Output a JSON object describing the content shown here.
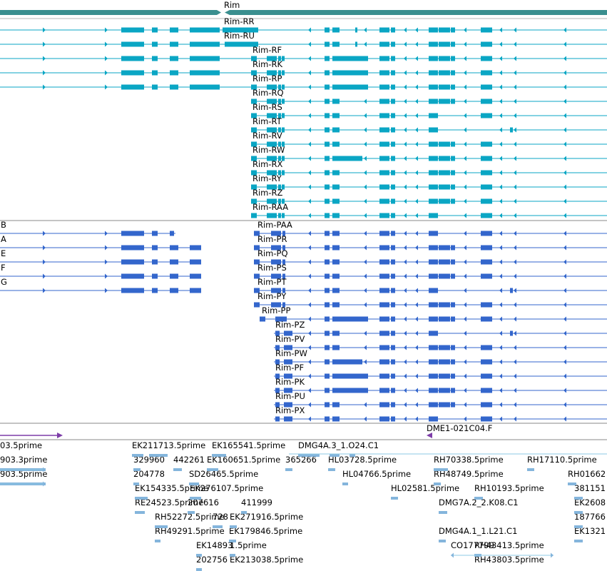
{
  "colors": {
    "gene": "#3a8f8f",
    "tx_a": "#0aa6c4",
    "tx_b": "#3366cc",
    "est": "#84b5dc",
    "est_line": "#8cc8e4",
    "clone": "#7d3ca8",
    "divider": "#8a8a8a"
  },
  "gene_label": "Rim",
  "tracks": {
    "rna_a": {
      "left_labels": [],
      "labels": [
        "Rim-RR",
        "Rim-RU",
        "Rim-RF",
        "Rim-RK",
        "Rim-RP",
        "Rim-RQ",
        "Rim-RS",
        "Rim-RT",
        "Rim-RV",
        "Rim-RW",
        "Rim-RX",
        "Rim-RY",
        "Rim-RZ",
        "Rim-RAA"
      ]
    },
    "rna_b": {
      "left_labels": [
        "B",
        "A",
        "E",
        "F",
        "G"
      ],
      "labels": [
        "Rim-PAA",
        "Rim-PR",
        "Rim-PQ",
        "Rim-PS",
        "Rim-PT",
        "Rim-PY",
        "Rim-PP",
        "Rim-PZ",
        "Rim-PV",
        "Rim-PW",
        "Rim-PF",
        "Rim-PK",
        "Rim-PU",
        "Rim-PX"
      ]
    },
    "clones": {
      "labels": [
        "DME1-021C04.F"
      ]
    },
    "ests": {
      "labels": [
        "03.5prime",
        "903.3prime",
        "903.5prime",
        "EK211713.5prime",
        "EK165541.5prime",
        "DMG4A.3_1.O24.C1",
        "329960",
        "442261",
        "EK160651.5prime",
        "365266",
        "HL03728.5prime",
        "RH70338.5prime",
        "RH17110.5prime",
        "204778",
        "SD26465.5prime",
        "HL04766.5prime",
        "RH48749.5prime",
        "RH01662",
        "EK154335.5prime",
        "EK276107.5prime",
        "HL02581.5prime",
        "RH10193.5prime",
        "381151",
        "RE24523.5prime",
        "207616",
        "411999",
        "DMG7A.2_2.K08.C1",
        "EK2608",
        "RH52272.5prime",
        "728",
        "EK271916.5prime",
        "187766",
        "RH49291.5prime",
        "EK179846.5prime",
        "DMG4A.1_1.L21.C1",
        "EK1321",
        "CO177799",
        "EK14893",
        "1.5prime",
        "RH43413.5prime",
        "202756",
        "EK213038.5prime",
        "RH43803.5prime"
      ]
    }
  }
}
